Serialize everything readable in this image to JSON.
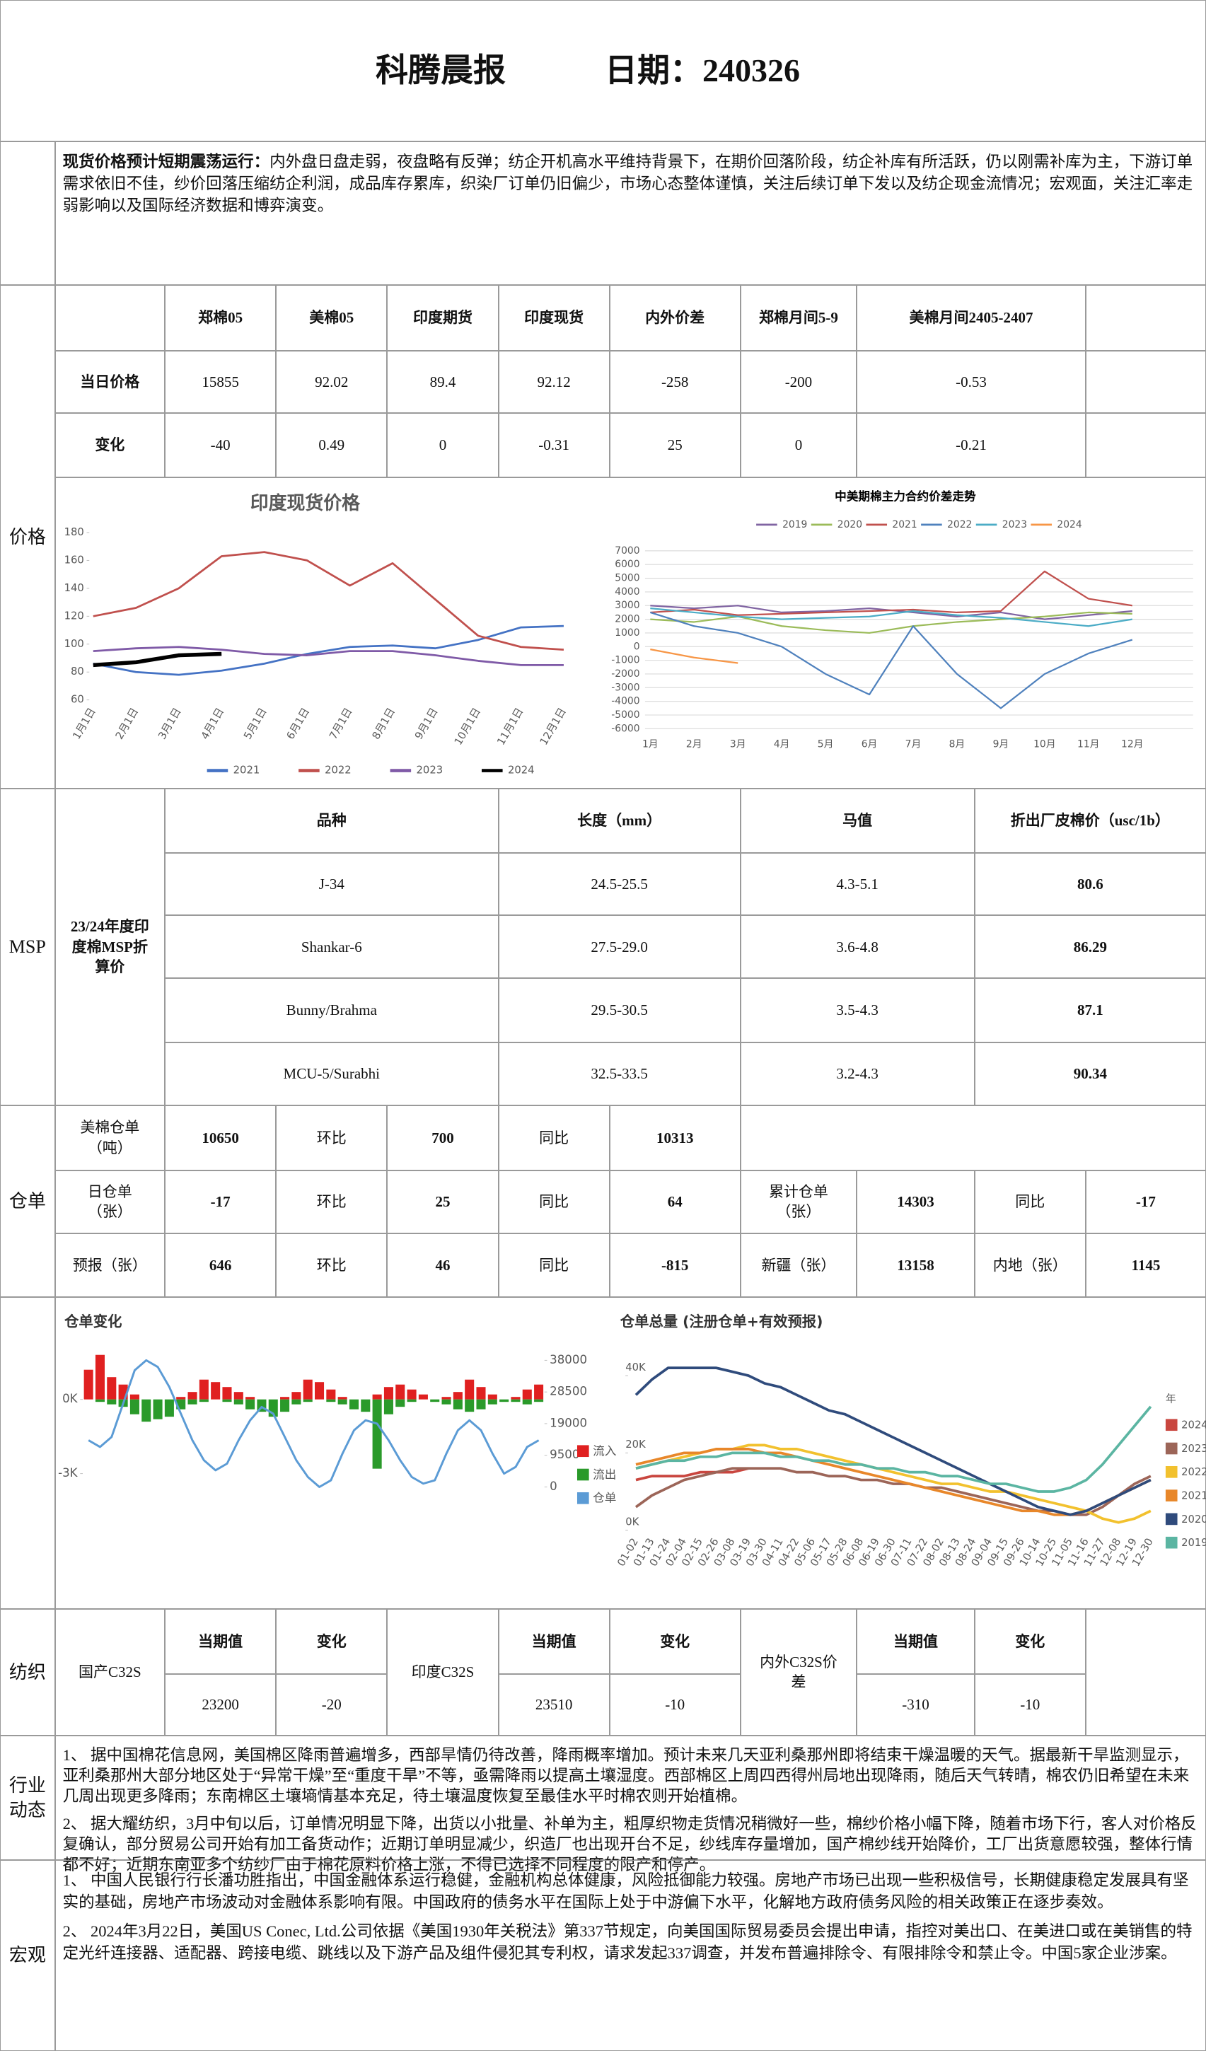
{
  "header": {
    "title": "科腾晨报",
    "date": "日期：240326"
  },
  "spot": {
    "lead": "现货价格预计短期震荡运行：",
    "text": "内外盘日盘走弱，夜盘略有反弹；纺企开机高水平维持背景下，在期价回落阶段，纺企补库有所活跃，仍以刚需补库为主，下游订单需求依旧不佳，纱价回落压缩纺企利润，成品库存累库，织染厂订单仍旧偏少，市场心态整体谨慎，关注后续订单下发以及纺企现金流情况；宏观面，关注汇率走弱影响以及国际经济数据和博弈演变。"
  },
  "price": {
    "label": "价格",
    "columns": [
      "郑棉05",
      "美棉05",
      "印度期货",
      "印度现货",
      "内外价差",
      "郑棉月间5-9",
      "美棉月间2405-2407"
    ],
    "rows": [
      {
        "label": "当日价格",
        "values": [
          "15855",
          "92.02",
          "89.4",
          "92.12",
          "-258",
          "-200",
          "-0.53"
        ]
      },
      {
        "label": "变化",
        "values": [
          "-40",
          "0.49",
          "0",
          "-0.31",
          "25",
          "0",
          "-0.21"
        ]
      }
    ]
  },
  "msp": {
    "label": "MSP",
    "subtitle": "23/24年度印度棉MSP折算价",
    "columns": [
      "品种",
      "长度（mm）",
      "马值",
      "折出厂皮棉价（usc/1b）"
    ],
    "rows": [
      [
        "J-34",
        "24.5-25.5",
        "4.3-5.1",
        "80.6"
      ],
      [
        "Shankar-6",
        "27.5-29.0",
        "3.6-4.8",
        "86.29"
      ],
      [
        "Bunny/Brahma",
        "29.5-30.5",
        "3.5-4.3",
        "87.1"
      ],
      [
        "MCU-5/Surabhi",
        "32.5-33.5",
        "3.2-4.3",
        "90.34"
      ]
    ]
  },
  "warehouse": {
    "label": "仓单",
    "rows": [
      [
        "美棉仓单（吨）",
        "10650",
        "环比",
        "700",
        "同比",
        "10313"
      ],
      [
        "日仓单（张）",
        "-17",
        "环比",
        "25",
        "同比",
        "64",
        "累计仓单（张）",
        "14303",
        "同比",
        "-17"
      ],
      [
        "预报（张）",
        "646",
        "环比",
        "46",
        "同比",
        "-815",
        "新疆（张）",
        "13158",
        "内地（张）",
        "1145"
      ]
    ]
  },
  "textile": {
    "label": "纺织",
    "groups": [
      {
        "name": "国产C32S",
        "headers": [
          "当期值",
          "变化"
        ],
        "values": [
          "23200",
          "-20"
        ]
      },
      {
        "name": "印度C32S",
        "headers": [
          "当期值",
          "变化"
        ],
        "values": [
          "23510",
          "-10"
        ]
      },
      {
        "name": "内外C32S价差",
        "headers": [
          "当期值",
          "变化"
        ],
        "values": [
          "-310",
          "-10"
        ]
      }
    ]
  },
  "industry": {
    "label": "行业动态",
    "paragraphs": [
      "1、 据中国棉花信息网，美国棉区降雨普遍增多，西部旱情仍待改善，降雨概率增加。预计未来几天亚利桑那州即将结束干燥温暖的天气。据最新干旱监测显示，亚利桑那州大部分地区处于“异常干燥”至“重度干旱”不等，亟需降雨以提高土壤湿度。西部棉区上周四西得州局地出现降雨，随后天气转晴，棉农仍旧希望在未来几周出现更多降雨；东南棉区土壤墒情基本充足，待土壤温度恢复至最佳水平时棉农则开始植棉。",
      "2、 据大耀纺织，3月中旬以后，订单情况明显下降，出货以小批量、补单为主，粗厚织物走货情况稍微好一些，棉纱价格小幅下降，随着市场下行，客人对价格反复确认，部分贸易公司开始有加工备货动作；近期订单明显减少，织造厂也出现开台不足，纱线库存量增加，国产棉纱线开始降价，工厂出货意愿较强，整体行情都不好；近期东南亚多个纺纱厂由于棉花原料价格上涨，不得已选择不同程度的限产和停产。"
    ]
  },
  "macro": {
    "label": "宏观",
    "paragraphs": [
      "1、 中国人民银行行长潘功胜指出，中国金融体系运行稳健，金融机构总体健康，风险抵御能力较强。房地产市场已出现一些积极信号，长期健康稳定发展具有坚实的基础，房地产市场波动对金融体系影响有限。中国政府的债务水平在国际上处于中游偏下水平，化解地方政府债务风险的相关政策正在逐步奏效。",
      "2、 2024年3月22日，美国US Conec, Ltd.公司依据《美国1930年关税法》第337节规定，向美国国际贸易委员会提出申请，指控对美出口、在美进口或在美销售的特定光纤连接器、适配器、跨接电缆、跳线以及下游产品及组件侵犯其专利权，请求发起337调查，并发布普遍排除令、有限排除令和禁止令。中国5家企业涉案。"
    ]
  },
  "chart_data": [
    {
      "type": "line",
      "title": "印度现货价格",
      "categories": [
        "1月1日",
        "2月1日",
        "3月1日",
        "4月1日",
        "5月1日",
        "6月1日",
        "7月1日",
        "8月1日",
        "9月1日",
        "10月1日",
        "11月1日",
        "12月1日"
      ],
      "series": [
        {
          "name": "2021",
          "color": "#4472c4",
          "values": [
            86,
            80,
            78,
            81,
            86,
            93,
            98,
            99,
            97,
            103,
            112,
            113
          ]
        },
        {
          "name": "2022",
          "color": "#c0504d",
          "values": [
            120,
            126,
            140,
            163,
            166,
            160,
            142,
            158,
            132,
            106,
            98,
            96
          ]
        },
        {
          "name": "2023",
          "color": "#7f5aa7",
          "values": [
            95,
            97,
            98,
            96,
            93,
            92,
            95,
            95,
            92,
            88,
            85,
            85
          ]
        },
        {
          "name": "2024",
          "color": "#000000",
          "values": [
            85,
            87,
            92,
            93,
            null,
            null,
            null,
            null,
            null,
            null,
            null,
            null
          ]
        }
      ],
      "ylim": [
        60,
        180
      ],
      "yticks": [
        60,
        80,
        100,
        120,
        140,
        160,
        180
      ],
      "grid": false,
      "legend": "bottom"
    },
    {
      "type": "line",
      "title": "中美期棉主力合约价差走势",
      "categories": [
        "1月",
        "2月",
        "3月",
        "4月",
        "5月",
        "6月",
        "7月",
        "8月",
        "9月",
        "10月",
        "11月",
        "12月"
      ],
      "series": [
        {
          "name": "2019",
          "color": "#8064a2",
          "values": [
            3000,
            2800,
            3000,
            2500,
            2600,
            2800,
            2500,
            2200,
            2500,
            2000,
            2300,
            2600
          ]
        },
        {
          "name": "2020",
          "color": "#9bbb59",
          "values": [
            2000,
            1800,
            2200,
            1500,
            1200,
            1000,
            1500,
            1800,
            2000,
            2200,
            2500,
            2400
          ]
        },
        {
          "name": "2021",
          "color": "#c0504d",
          "values": [
            2500,
            2700,
            2300,
            2400,
            2500,
            2600,
            2700,
            2500,
            2600,
            5500,
            3500,
            3000
          ]
        },
        {
          "name": "2022",
          "color": "#4f81bd",
          "values": [
            2500,
            1500,
            1000,
            0,
            -2000,
            -3500,
            1500,
            -2000,
            -4500,
            -2000,
            -500,
            500
          ]
        },
        {
          "name": "2023",
          "color": "#4bacc6",
          "values": [
            2800,
            2500,
            2200,
            2000,
            2100,
            2200,
            2600,
            2300,
            2100,
            1800,
            1500,
            2000
          ]
        },
        {
          "name": "2024",
          "color": "#f79646",
          "values": [
            -200,
            -800,
            -1200,
            null,
            null,
            null,
            null,
            null,
            null,
            null,
            null,
            null
          ]
        }
      ],
      "ylim": [
        -6000,
        7000
      ],
      "yticks": [
        -6000,
        -5000,
        -4000,
        -3000,
        -2000,
        -1000,
        0,
        1000,
        2000,
        3000,
        4000,
        5000,
        6000,
        7000
      ],
      "grid": true,
      "legend": "top"
    },
    {
      "type": "bar",
      "title": "仓单变化",
      "series": [
        {
          "name": "流入",
          "color": "#e02020",
          "values": [
            1200,
            1800,
            900,
            600,
            200,
            0,
            0,
            0,
            100,
            300,
            800,
            700,
            500,
            300,
            100,
            0,
            0,
            100,
            300,
            800,
            700,
            400,
            100,
            0,
            0,
            200,
            500,
            600,
            400,
            200,
            0,
            100,
            300,
            800,
            500,
            200,
            0,
            100,
            400,
            600
          ]
        },
        {
          "name": "流出",
          "color": "#2a9a2a",
          "values": [
            0,
            -100,
            -200,
            -300,
            -600,
            -900,
            -800,
            -700,
            -400,
            -200,
            -100,
            0,
            -100,
            -200,
            -400,
            -500,
            -700,
            -500,
            -200,
            -100,
            0,
            -100,
            -200,
            -400,
            -500,
            -2800,
            -600,
            -300,
            -100,
            0,
            -100,
            -200,
            -400,
            -500,
            -400,
            -200,
            -100,
            -100,
            -200,
            -100
          ]
        },
        {
          "name": "仓单",
          "color": "#5b9bd5",
          "axis": "y2",
          "values": [
            14000,
            12000,
            15000,
            25000,
            35000,
            38000,
            36000,
            30000,
            22000,
            14000,
            8000,
            5000,
            7000,
            14000,
            20000,
            24000,
            22000,
            15000,
            8000,
            3000,
            0,
            2000,
            10000,
            17000,
            20000,
            19000,
            14000,
            8000,
            3000,
            1000,
            2000,
            10000,
            17000,
            20000,
            17000,
            10000,
            4000,
            6000,
            12000,
            14000
          ]
        }
      ],
      "ylim": [
        -3700,
        1850
      ],
      "yticks": [
        {
          "value": -3000,
          "label": "-3K"
        },
        {
          "value": 0,
          "label": "0K"
        }
      ],
      "y2lim": [
        -1200,
        40000
      ],
      "y2ticks": [
        0,
        9500,
        19000,
        28500,
        38000
      ],
      "grid": false,
      "legend": "right"
    },
    {
      "type": "line",
      "title": "仓单总量 (注册仓单+有效预报)",
      "categories": [
        "01-02",
        "01-13",
        "01-24",
        "02-04",
        "02-15",
        "02-26",
        "03-08",
        "03-19",
        "03-30",
        "04-11",
        "04-22",
        "05-06",
        "05-17",
        "05-28",
        "06-08",
        "06-19",
        "06-30",
        "07-11",
        "07-22",
        "08-02",
        "08-13",
        "08-24",
        "09-04",
        "09-15",
        "09-26",
        "10-14",
        "10-25",
        "11-05",
        "11-16",
        "11-27",
        "12-08",
        "12-19",
        "12-30"
      ],
      "series": [
        {
          "name": "2024",
          "color": "#c9463f",
          "values": [
            13000,
            14000,
            14000,
            14000,
            15000,
            15000,
            15000,
            16000,
            null,
            null,
            null,
            null,
            null,
            null,
            null,
            null,
            null,
            null,
            null,
            null,
            null,
            null,
            null,
            null,
            null,
            null,
            null,
            null,
            null,
            null,
            null,
            null,
            null
          ]
        },
        {
          "name": "2023",
          "color": "#9c6558",
          "values": [
            6000,
            9000,
            11000,
            13000,
            14000,
            15000,
            16000,
            16000,
            16000,
            16000,
            15000,
            15000,
            14000,
            14000,
            13000,
            13000,
            12000,
            12000,
            11000,
            11000,
            10000,
            9000,
            8000,
            7000,
            6000,
            5000,
            5000,
            4000,
            4000,
            6000,
            9000,
            12000,
            14000
          ]
        },
        {
          "name": "2022",
          "color": "#f2c12e",
          "values": [
            16000,
            17000,
            18000,
            19000,
            20000,
            21000,
            21000,
            22000,
            22000,
            21000,
            21000,
            20000,
            19000,
            18000,
            17000,
            16000,
            15000,
            14000,
            13000,
            12000,
            12000,
            11000,
            10000,
            10000,
            9000,
            8000,
            7000,
            6000,
            5000,
            3000,
            2000,
            3000,
            5000
          ]
        },
        {
          "name": "2021",
          "color": "#e8872a",
          "values": [
            17000,
            18000,
            19000,
            20000,
            20000,
            21000,
            21000,
            21000,
            20000,
            20000,
            19000,
            18000,
            17000,
            16000,
            15000,
            14000,
            13000,
            12000,
            11000,
            10000,
            9000,
            8000,
            7000,
            6000,
            5000,
            5000,
            4000,
            4000,
            5000,
            7000,
            9000,
            11000,
            13000
          ]
        },
        {
          "name": "2020",
          "color": "#2f4b7c",
          "values": [
            35000,
            39000,
            42000,
            42000,
            42000,
            42000,
            41000,
            40000,
            38000,
            37000,
            35000,
            33000,
            31000,
            30000,
            28000,
            26000,
            24000,
            22000,
            20000,
            18000,
            16000,
            14000,
            12000,
            10000,
            8000,
            6000,
            5000,
            4000,
            5000,
            7000,
            9000,
            11000,
            13000
          ]
        },
        {
          "name": "2019",
          "color": "#5bb5a2",
          "values": [
            16000,
            17000,
            18000,
            18000,
            19000,
            19000,
            20000,
            20000,
            20000,
            19000,
            19000,
            18000,
            18000,
            17000,
            17000,
            16000,
            16000,
            15000,
            15000,
            14000,
            14000,
            13000,
            12000,
            12000,
            11000,
            10000,
            10000,
            11000,
            13000,
            17000,
            22000,
            27000,
            32000
          ]
        }
      ],
      "ylim": [
        0,
        44000
      ],
      "yticks": [
        {
          "value": 0,
          "label": "0K"
        },
        {
          "value": 20000,
          "label": "20K"
        },
        {
          "value": 40000,
          "label": "40K"
        }
      ],
      "grid": false,
      "legend": "right",
      "legend_title": "年"
    }
  ]
}
